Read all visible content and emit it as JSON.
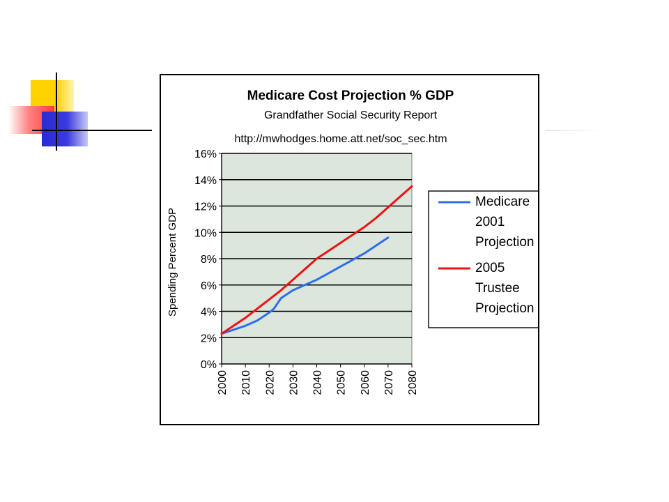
{
  "chart_data": {
    "type": "line",
    "title": "Medicare Cost Projection % GDP",
    "subtitle": "Grandfather Social Security Report",
    "source": "http://mwhodges.home.att.net/soc_sec.htm",
    "xlabel": "",
    "ylabel": "Spending Percent GDP",
    "xlim": [
      2000,
      2080
    ],
    "ylim": [
      0,
      16
    ],
    "x_ticks": [
      "2000",
      "2010",
      "2020",
      "2030",
      "2040",
      "2050",
      "2060",
      "2070",
      "2080"
    ],
    "y_ticks": [
      "0%",
      "2%",
      "4%",
      "6%",
      "8%",
      "10%",
      "12%",
      "14%",
      "16%"
    ],
    "grid": true,
    "legend_position": "right",
    "plot_background": "#dde6dc",
    "series": [
      {
        "name": "Medicare 2001 Projection",
        "legend_lines": [
          "Medicare",
          "2001",
          "Projection"
        ],
        "color": "#2b6ef0",
        "x": [
          2000,
          2005,
          2010,
          2015,
          2020,
          2022,
          2025,
          2030,
          2035,
          2040,
          2045,
          2050,
          2055,
          2060,
          2065,
          2070
        ],
        "y": [
          2.3,
          2.6,
          2.9,
          3.3,
          3.9,
          4.2,
          5.0,
          5.6,
          6.0,
          6.4,
          6.9,
          7.4,
          7.9,
          8.4,
          9.0,
          9.6
        ]
      },
      {
        "name": "2005 Trustee Projection",
        "legend_lines": [
          "2005",
          "Trustee",
          "Projection"
        ],
        "color": "#ee1111",
        "x": [
          2000,
          2005,
          2010,
          2015,
          2020,
          2025,
          2030,
          2035,
          2040,
          2045,
          2050,
          2055,
          2060,
          2065,
          2070,
          2075,
          2080
        ],
        "y": [
          2.3,
          2.9,
          3.5,
          4.2,
          4.9,
          5.6,
          6.4,
          7.2,
          8.0,
          8.6,
          9.2,
          9.8,
          10.4,
          11.1,
          11.9,
          12.7,
          13.5
        ]
      }
    ]
  }
}
